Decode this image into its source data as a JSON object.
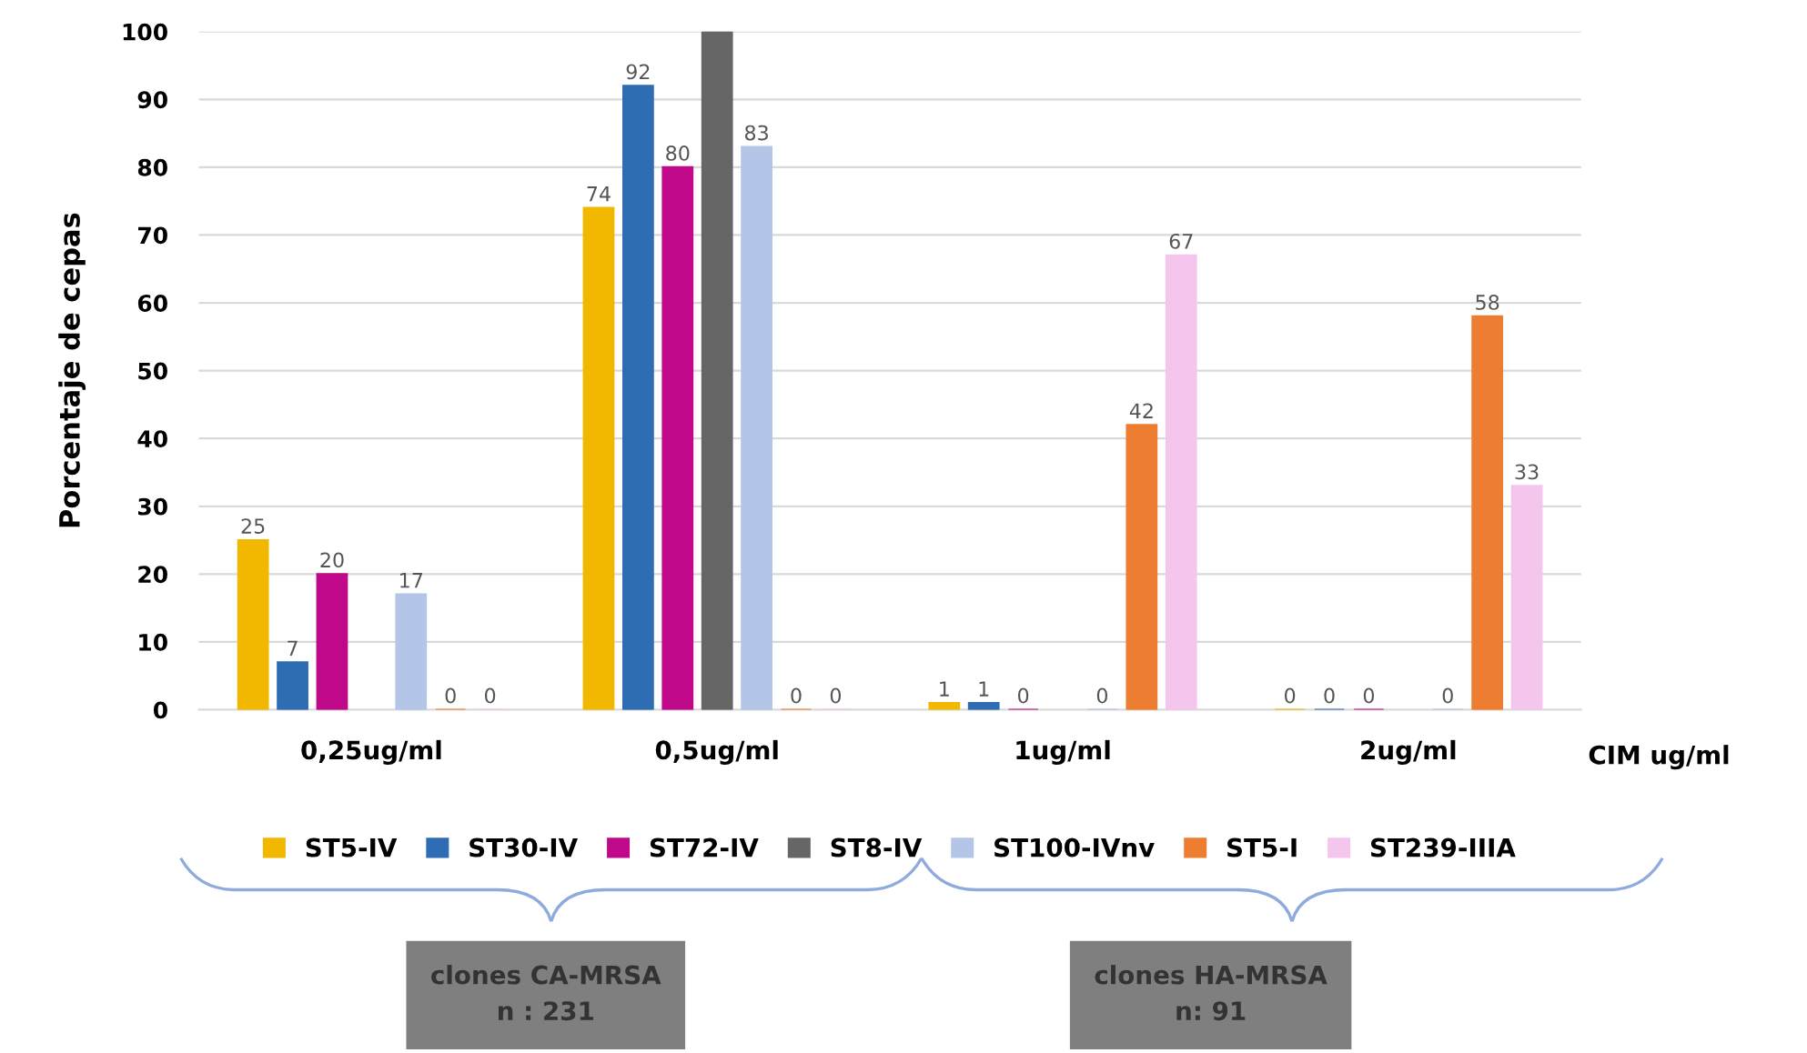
{
  "chart_data": {
    "type": "bar",
    "categories": [
      "0,25ug/ml",
      "0,5ug/ml",
      "1ug/ml",
      "2ug/ml"
    ],
    "ylabel": "Porcentaje de cepas",
    "xlabel": "CIM ug/ml",
    "series": [
      {
        "name": "ST5-IV",
        "color": "#f2b800",
        "values": [
          25,
          74,
          1,
          0
        ],
        "value_labels": [
          "25",
          "74",
          "1",
          "0"
        ]
      },
      {
        "name": "ST30-IV",
        "color": "#2e6db4",
        "values": [
          7,
          92,
          1,
          0
        ],
        "value_labels": [
          "7",
          "92",
          "1",
          "0"
        ]
      },
      {
        "name": "ST72-IV",
        "color": "#c0088a",
        "values": [
          20,
          80,
          0,
          0
        ],
        "value_labels": [
          "20",
          "80",
          "0",
          "0"
        ]
      },
      {
        "name": "ST8-IV",
        "color": "#666666",
        "values": [
          null,
          100,
          null,
          null
        ],
        "value_labels": [
          null,
          null,
          null,
          null
        ]
      },
      {
        "name": "ST100-IVnv",
        "color": "#b4c6e7",
        "values": [
          17,
          83,
          0,
          0
        ],
        "value_labels": [
          "17",
          "83",
          "0",
          "0"
        ]
      },
      {
        "name": "ST5-I",
        "color": "#ed7d31",
        "values": [
          0,
          0,
          42,
          58
        ],
        "value_labels": [
          "0",
          "0",
          "42",
          "58"
        ]
      },
      {
        "name": "ST239-IIIA",
        "color": "#f4c6ee",
        "values": [
          0,
          0,
          67,
          33
        ],
        "value_labels": [
          "0",
          "0",
          "67",
          "33"
        ]
      }
    ],
    "ylim": [
      0,
      100
    ],
    "yticks": [
      0,
      10,
      20,
      30,
      40,
      50,
      60,
      70,
      80,
      90,
      100
    ],
    "grid": "y",
    "legend": "bottom",
    "annotations": [
      "clones CA-MRSA\nn : 231",
      "clones HA-MRSA\nn: 91"
    ]
  }
}
